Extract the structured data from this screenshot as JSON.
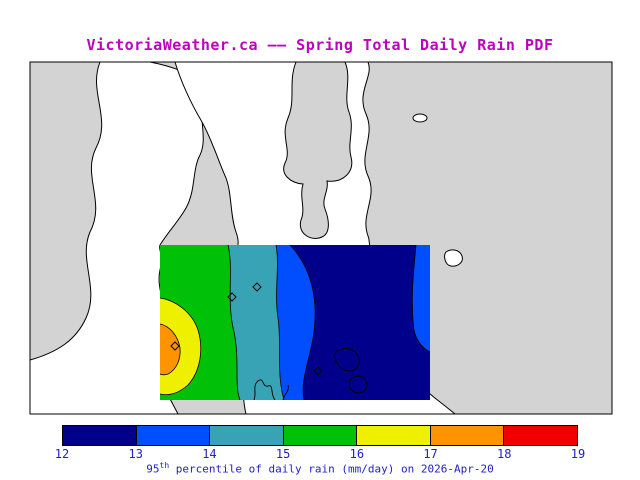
{
  "title": "VictoriaWeather.ca —— Spring Total Daily Rain PDF",
  "title_color": "#bf00bf",
  "label_color": "#2121c8",
  "map": {
    "water_color": "#d3d3d3",
    "land_color": "#ffffff",
    "coast_color": "#000000"
  },
  "chart_data": {
    "type": "heatmap",
    "title": "VictoriaWeather.ca —— Spring Total Daily Rain PDF",
    "quantity": "95th percentile of daily rain",
    "units": "mm/day",
    "date": "2026-Apr-20",
    "scale_min": 12,
    "scale_max": 19,
    "ticks": [
      "12",
      "13",
      "14",
      "15",
      "16",
      "17",
      "18",
      "19"
    ],
    "colors": [
      "#00008b",
      "#004eff",
      "#38a3b4",
      "#00c008",
      "#eef000",
      "#ff9400",
      "#f00000"
    ],
    "legend_position": "bottom",
    "field_summary": "Filled contours over the Victoria map region; values increase westward from 12-13 mm/day (navy, east) to a 17-18 mm/day (orange) maximum at the western edge of the model domain.",
    "caption": {
      "prefix": "95",
      "sup": "th",
      "rest": " percentile of daily rain (mm/day) on 2026-Apr-20"
    }
  }
}
